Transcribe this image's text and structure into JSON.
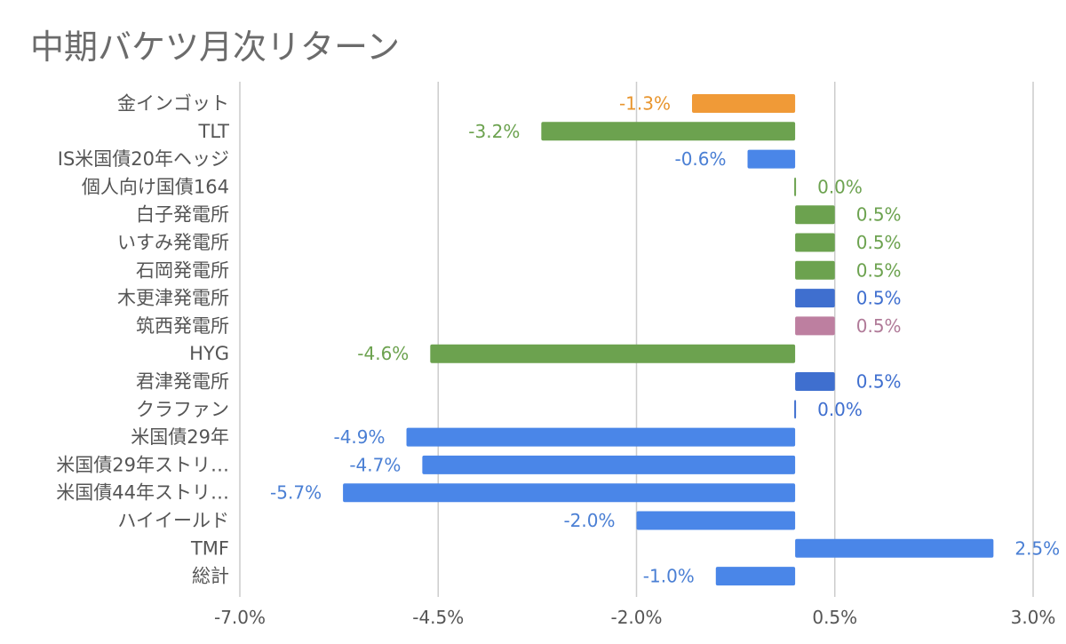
{
  "chart_data": {
    "type": "bar",
    "orientation": "horizontal",
    "title": "中期バケツ月次リターン",
    "xlabel": "",
    "ylabel": "",
    "xlim": [
      -7.0,
      3.0
    ],
    "grid": true,
    "legend": "none",
    "ticks": [
      "-7.0%",
      "-4.5%",
      "-2.0%",
      "0.5%",
      "3.0%"
    ],
    "tick_values": [
      -7.0,
      -4.5,
      -2.0,
      0.5,
      3.0
    ],
    "categories": [
      "金インゴット",
      "TLT",
      "IS米国債20年ヘッジ",
      "個人向け国債164",
      "白子発電所",
      "いすみ発電所",
      "石岡発電所",
      "木更津発電所",
      "筑西発電所",
      "HYG",
      "君津発電所",
      "クラファン",
      "米国債29年",
      "米国債29年ストリ…",
      "米国債44年ストリ…",
      "ハイイールド",
      "TMF",
      "総計"
    ],
    "values": [
      -1.3,
      -3.2,
      -0.6,
      0.0,
      0.5,
      0.5,
      0.5,
      0.5,
      0.5,
      -4.6,
      0.5,
      0.0,
      -4.9,
      -4.7,
      -5.7,
      -2.0,
      2.5,
      -1.0
    ],
    "value_labels": [
      "-1.3%",
      "-3.2%",
      "-0.6%",
      "0.0%",
      "0.5%",
      "0.5%",
      "0.5%",
      "0.5%",
      "0.5%",
      "-4.6%",
      "0.5%",
      "0.0%",
      "-4.9%",
      "-4.7%",
      "-5.7%",
      "-2.0%",
      "2.5%",
      "-1.0%"
    ],
    "bar_colors": [
      "#f09a37",
      "#6ca24f",
      "#4a86e8",
      "#6ca24f",
      "#6ca24f",
      "#6ca24f",
      "#6ca24f",
      "#3f6fcf",
      "#bd7fa0",
      "#6ca24f",
      "#3f6fcf",
      "#3f6fcf",
      "#4a86e8",
      "#4a86e8",
      "#4a86e8",
      "#4a86e8",
      "#4a86e8",
      "#4a86e8"
    ],
    "label_colors": [
      "#e8952e",
      "#6ca24f",
      "#4a7fd4",
      "#6ca24f",
      "#6ca24f",
      "#6ca24f",
      "#6ca24f",
      "#3f6fcf",
      "#b07a98",
      "#6ca24f",
      "#3f6fcf",
      "#3f6fcf",
      "#4a7fd4",
      "#4a7fd4",
      "#4a7fd4",
      "#4a7fd4",
      "#4a7fd4",
      "#4a7fd4"
    ]
  }
}
